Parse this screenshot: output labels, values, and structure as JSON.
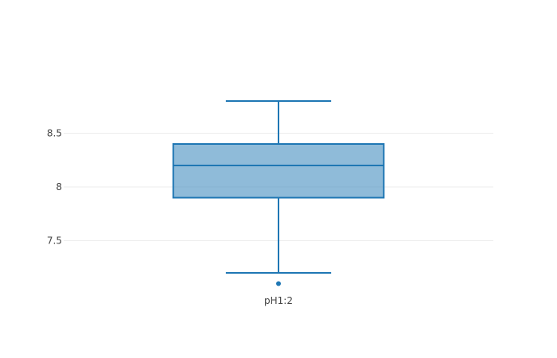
{
  "chart_data": {
    "type": "box",
    "title": "",
    "xlabel": "",
    "ylabel": "",
    "ylim": [
      7.0,
      9.0
    ],
    "yticks": [
      {
        "value": 7.5,
        "label": "7.5"
      },
      {
        "value": 8.0,
        "label": "8"
      },
      {
        "value": 8.5,
        "label": "8.5"
      }
    ],
    "grid": true,
    "color": "#1f77b4",
    "fill_color": "#1f77b4",
    "fill_opacity": 0.5,
    "series": [
      {
        "category": "pH1:2",
        "lower_whisker": 7.2,
        "q1": 7.9,
        "median": 8.2,
        "q3": 8.4,
        "upper_whisker": 8.8,
        "outliers": [
          7.1
        ]
      }
    ]
  }
}
